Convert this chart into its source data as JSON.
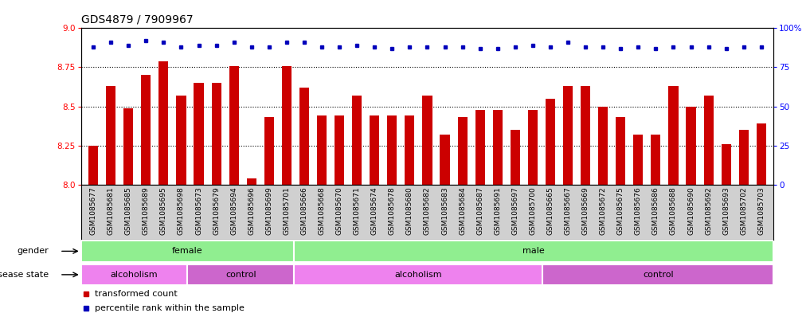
{
  "title": "GDS4879 / 7909967",
  "samples": [
    "GSM1085677",
    "GSM1085681",
    "GSM1085685",
    "GSM1085689",
    "GSM1085695",
    "GSM1085698",
    "GSM1085673",
    "GSM1085679",
    "GSM1085694",
    "GSM1085696",
    "GSM1085699",
    "GSM1085701",
    "GSM1085666",
    "GSM1085668",
    "GSM1085670",
    "GSM1085671",
    "GSM1085674",
    "GSM1085678",
    "GSM1085680",
    "GSM1085682",
    "GSM1085683",
    "GSM1085684",
    "GSM1085687",
    "GSM1085691",
    "GSM1085697",
    "GSM1085700",
    "GSM1085665",
    "GSM1085667",
    "GSM1085669",
    "GSM1085672",
    "GSM1085675",
    "GSM1085676",
    "GSM1085686",
    "GSM1085688",
    "GSM1085690",
    "GSM1085692",
    "GSM1085693",
    "GSM1085702",
    "GSM1085703"
  ],
  "bar_values": [
    8.25,
    8.63,
    8.49,
    8.7,
    8.79,
    8.57,
    8.65,
    8.65,
    8.76,
    8.04,
    8.43,
    8.76,
    8.62,
    8.44,
    8.44,
    8.57,
    8.44,
    8.44,
    8.44,
    8.57,
    8.32,
    8.43,
    8.48,
    8.48,
    8.35,
    8.48,
    8.55,
    8.63,
    8.63,
    8.5,
    8.43,
    8.32,
    8.32,
    8.63,
    8.5,
    8.57,
    8.26,
    8.35,
    8.39
  ],
  "percentile_values": [
    88,
    91,
    89,
    92,
    91,
    88,
    89,
    89,
    91,
    88,
    88,
    91,
    91,
    88,
    88,
    89,
    88,
    87,
    88,
    88,
    88,
    88,
    87,
    87,
    88,
    89,
    88,
    91,
    88,
    88,
    87,
    88,
    87,
    88,
    88,
    88,
    87,
    88,
    88
  ],
  "ylim_left": [
    8.0,
    9.0
  ],
  "ylim_right": [
    0,
    100
  ],
  "yticks_left": [
    8.0,
    8.25,
    8.5,
    8.75,
    9.0
  ],
  "yticks_right": [
    0,
    25,
    50,
    75,
    100
  ],
  "bar_color": "#cc0000",
  "dot_color": "#0000bb",
  "gender_segments": [
    {
      "label": "female",
      "start": 0,
      "end": 11
    },
    {
      "label": "male",
      "start": 12,
      "end": 38
    }
  ],
  "disease_segments": [
    {
      "label": "alcoholism",
      "start": 0,
      "end": 5
    },
    {
      "label": "control",
      "start": 6,
      "end": 11
    },
    {
      "label": "alcoholism",
      "start": 12,
      "end": 25
    },
    {
      "label": "control",
      "start": 26,
      "end": 38
    }
  ],
  "tick_fontsize": 7.5,
  "label_fontsize": 8,
  "title_fontsize": 10,
  "gender_color": "#90EE90",
  "alcoholism_color": "#EE82EE",
  "control_color": "#CC66CC",
  "xtick_bg_color": "#d0d0d0",
  "plot_bg_color": "#ffffff"
}
